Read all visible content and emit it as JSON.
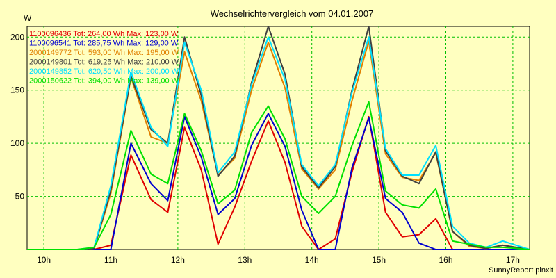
{
  "chart_data": {
    "type": "line",
    "title": "Wechselrichtervergleich vom 04.01.2007",
    "ylabel": "W",
    "credit": "SunnyReport pinxit",
    "x_ticks": [
      "10h",
      "11h",
      "12h",
      "13h",
      "14h",
      "15h",
      "16h",
      "17h"
    ],
    "y_ticks": [
      50,
      100,
      150,
      200
    ],
    "ylim": [
      0,
      210
    ],
    "xlim": [
      9.75,
      17.25
    ],
    "grid": true,
    "legend_position": "top-left",
    "series": [
      {
        "name": "1100096436 Tot: 264,00 Wh Max: 123,00 W",
        "color": "#e00000",
        "x": [
          9.75,
          10.5,
          10.75,
          11.0,
          11.3,
          11.6,
          11.85,
          12.1,
          12.35,
          12.6,
          12.85,
          13.1,
          13.35,
          13.6,
          13.85,
          14.1,
          14.35,
          14.6,
          14.85,
          15.1,
          15.35,
          15.6,
          15.85,
          16.1,
          16.35,
          16.6,
          16.85,
          17.25
        ],
        "y": [
          0,
          0,
          0,
          4,
          89,
          47,
          35,
          115,
          75,
          5,
          40,
          83,
          121,
          82,
          22,
          0,
          10,
          73,
          125,
          35,
          12,
          14,
          29,
          0,
          0,
          0,
          0,
          0
        ]
      },
      {
        "name": "1100096541 Tot: 285,75 Wh Max: 129,00 W",
        "color": "#0000d0",
        "x": [
          9.75,
          10.5,
          10.75,
          11.0,
          11.3,
          11.6,
          11.85,
          12.1,
          12.35,
          12.6,
          12.85,
          13.1,
          13.35,
          13.6,
          13.85,
          14.1,
          14.35,
          14.6,
          14.85,
          15.1,
          15.35,
          15.6,
          15.85,
          16.1,
          16.35,
          16.6,
          16.85,
          17.25
        ],
        "y": [
          0,
          0,
          0,
          0,
          100,
          62,
          46,
          125,
          87,
          33,
          48,
          98,
          128,
          97,
          37,
          0,
          0,
          77,
          124,
          48,
          35,
          6,
          0,
          0,
          0,
          0,
          0,
          0
        ]
      },
      {
        "name": "2000149772 Tot: 593,00 Wh Max: 195,00 W",
        "color": "#e08000",
        "x": [
          9.75,
          10.5,
          10.75,
          11.0,
          11.3,
          11.6,
          11.85,
          12.1,
          12.35,
          12.6,
          12.85,
          13.1,
          13.35,
          13.6,
          13.85,
          14.1,
          14.35,
          14.6,
          14.85,
          15.1,
          15.35,
          15.6,
          15.85,
          16.1,
          16.35,
          16.6,
          16.85,
          17.25
        ],
        "y": [
          0,
          0,
          1,
          53,
          162,
          106,
          100,
          186,
          140,
          70,
          86,
          150,
          195,
          152,
          76,
          57,
          75,
          140,
          196,
          90,
          68,
          65,
          91,
          17,
          3,
          1,
          4,
          0
        ]
      },
      {
        "name": "2000149801 Tot: 619,25 Wh Max: 210,00 W",
        "color": "#404040",
        "x": [
          9.75,
          10.5,
          10.75,
          11.0,
          11.3,
          11.6,
          11.85,
          12.1,
          12.35,
          12.6,
          12.85,
          13.1,
          13.35,
          13.6,
          13.85,
          14.1,
          14.35,
          14.6,
          14.85,
          15.1,
          15.35,
          15.6,
          15.85,
          16.1,
          16.35,
          16.6,
          16.85,
          17.25
        ],
        "y": [
          0,
          0,
          1,
          56,
          163,
          113,
          100,
          200,
          145,
          69,
          88,
          157,
          210,
          165,
          78,
          58,
          78,
          150,
          210,
          93,
          69,
          62,
          92,
          17,
          4,
          1,
          4,
          0
        ]
      },
      {
        "name": "2000149852 Tot: 620,50 Wh Max: 200,00 W",
        "color": "#00e0ff",
        "x": [
          9.75,
          10.5,
          10.75,
          11.0,
          11.3,
          11.6,
          11.85,
          12.1,
          12.35,
          12.6,
          12.85,
          13.1,
          13.35,
          13.6,
          13.85,
          14.1,
          14.35,
          14.6,
          14.85,
          15.1,
          15.35,
          15.6,
          15.85,
          16.1,
          16.35,
          16.6,
          16.85,
          17.25
        ],
        "y": [
          0,
          0,
          2,
          60,
          167,
          115,
          97,
          195,
          150,
          72,
          92,
          155,
          200,
          160,
          80,
          60,
          80,
          148,
          200,
          95,
          70,
          70,
          98,
          22,
          6,
          2,
          8,
          0
        ]
      },
      {
        "name": "2000150622 Tot: 394,00 Wh Max: 139,00 W",
        "color": "#00e000",
        "x": [
          9.75,
          10.5,
          10.75,
          11.0,
          11.3,
          11.6,
          11.85,
          12.1,
          12.35,
          12.6,
          12.85,
          13.1,
          13.35,
          13.6,
          13.85,
          14.1,
          14.35,
          14.6,
          14.85,
          15.1,
          15.35,
          15.6,
          15.85,
          16.1,
          16.35,
          16.6,
          16.85,
          17.25
        ],
        "y": [
          0,
          0,
          2,
          33,
          112,
          71,
          62,
          128,
          93,
          43,
          56,
          110,
          135,
          104,
          50,
          34,
          50,
          98,
          139,
          55,
          42,
          39,
          57,
          8,
          5,
          2,
          2,
          0
        ]
      }
    ]
  }
}
